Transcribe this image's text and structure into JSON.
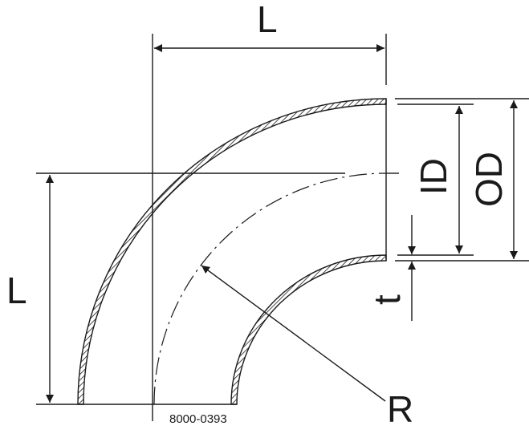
{
  "drawing": {
    "labels": {
      "length_top": "L",
      "length_left": "L",
      "inner_diameter": "ID",
      "outer_diameter": "OD",
      "wall_thickness": "t",
      "radius": "R"
    },
    "drawing_number": "8000-0393",
    "line_color": "#1a1a1a"
  }
}
